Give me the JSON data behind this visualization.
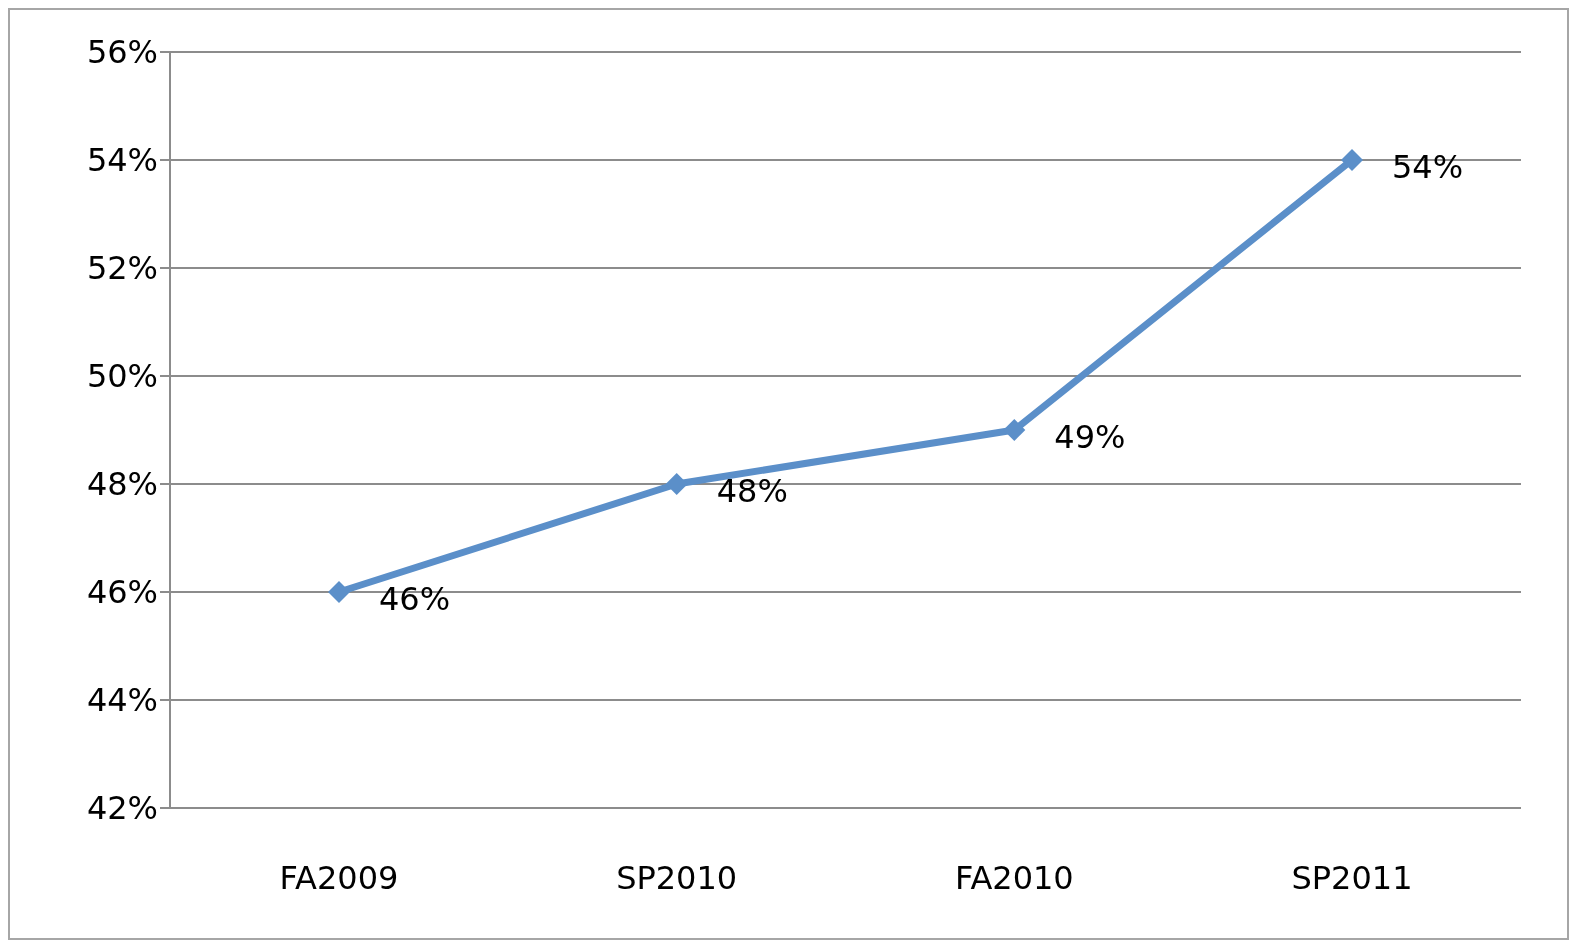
{
  "chart_data": {
    "type": "line",
    "categories": [
      "FA2009",
      "SP2010",
      "FA2010",
      "SP2011"
    ],
    "series": [
      {
        "color": "#5b8fc9",
        "values": [
          46,
          48,
          49,
          54
        ],
        "value_labels": [
          "46%",
          "48%",
          "49%",
          "54%"
        ]
      }
    ],
    "ylim": [
      42,
      56
    ],
    "yticks": [
      {
        "value": 42,
        "label": "42%"
      },
      {
        "value": 44,
        "label": "44%"
      },
      {
        "value": 46,
        "label": "46%"
      },
      {
        "value": 48,
        "label": "48%"
      },
      {
        "value": 50,
        "label": "50%"
      },
      {
        "value": 52,
        "label": "52%"
      },
      {
        "value": 54,
        "label": "54%"
      },
      {
        "value": 56,
        "label": "56%"
      }
    ],
    "grid": "y",
    "marker": "diamond"
  }
}
